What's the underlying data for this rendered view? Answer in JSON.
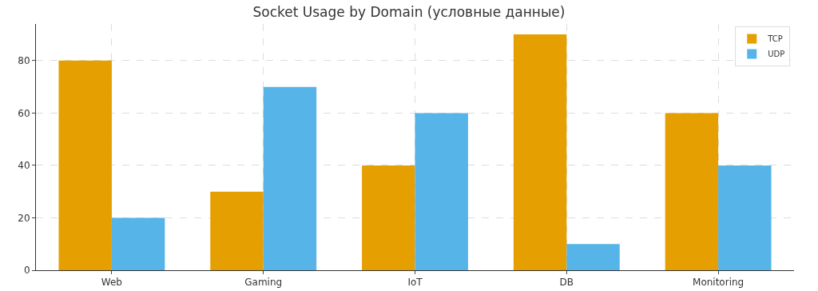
{
  "chart_data": {
    "type": "bar",
    "title": "Socket Usage by Domain (условные данные)",
    "categories": [
      "Web",
      "Gaming",
      "IoT",
      "DB",
      "Monitoring"
    ],
    "series": [
      {
        "name": "TCP",
        "color": "#e69f00",
        "values": [
          80,
          30,
          40,
          90,
          60
        ]
      },
      {
        "name": "UDP",
        "color": "#56b4e9",
        "values": [
          20,
          70,
          60,
          10,
          40
        ]
      }
    ],
    "ylim": [
      0,
      94
    ],
    "yticks": [
      0,
      20,
      40,
      60,
      80
    ],
    "grid": true,
    "legend": "top right"
  }
}
